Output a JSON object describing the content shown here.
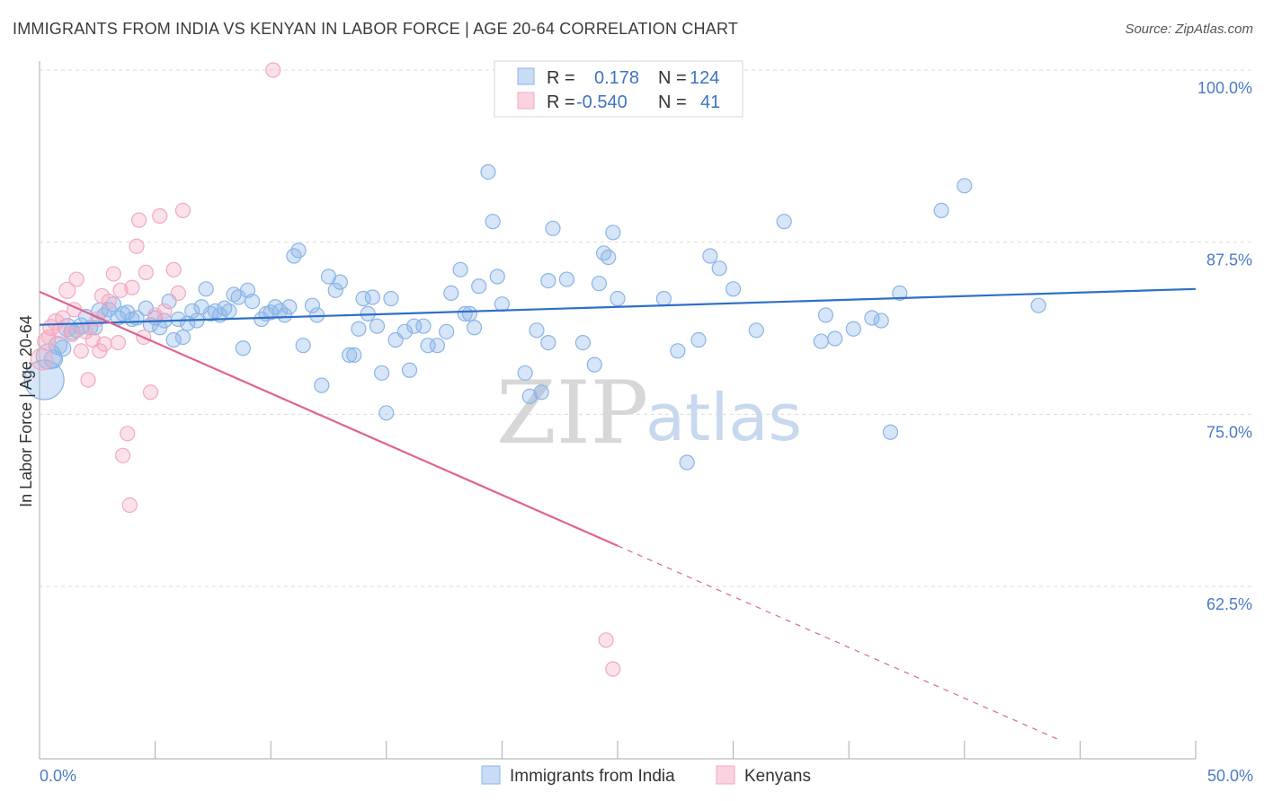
{
  "title": "IMMIGRANTS FROM INDIA VS KENYAN IN LABOR FORCE | AGE 20-64 CORRELATION CHART",
  "source": "Source: ZipAtlas.com",
  "watermark": {
    "zip": "ZIP",
    "atlas": "atlas"
  },
  "legend_top": {
    "rows": [
      {
        "r_label": "R =",
        "r_value": "0.178",
        "n_label": "N =",
        "n_value": "124",
        "color": "#8ab4e8"
      },
      {
        "r_label": "R =",
        "r_value": "-0.540",
        "n_label": "N =",
        "n_value": "41",
        "color": "#f4a8c0"
      }
    ]
  },
  "chart_data": {
    "type": "scatter",
    "title": "IMMIGRANTS FROM INDIA VS KENYAN IN LABOR FORCE | AGE 20-64 CORRELATION CHART",
    "xlabel": "",
    "ylabel": "In Labor Force | Age 20-64",
    "xlim": [
      0,
      50
    ],
    "ylim": [
      50.0,
      102.0
    ],
    "x_tick_labels": [
      "0.0%",
      "50.0%"
    ],
    "y_ticks": [
      {
        "value": 100.0,
        "label": "100.0%"
      },
      {
        "value": 87.5,
        "label": "87.5%"
      },
      {
        "value": 75.0,
        "label": "75.0%"
      },
      {
        "value": 62.5,
        "label": "62.5%"
      }
    ],
    "grid": true,
    "legend_position": "top-center",
    "series": [
      {
        "name": "Immigrants from India",
        "color": "#8ab4e8",
        "line_color": "#2f6fc7",
        "trend": {
          "x": [
            0,
            50
          ],
          "y": [
            81.5,
            84.1
          ],
          "dashed_from": null
        },
        "points": [
          [
            0.2,
            77.5,
            22
          ],
          [
            0.4,
            79.2,
            14
          ],
          [
            0.6,
            79.0,
            10
          ],
          [
            0.8,
            80.0,
            10
          ],
          [
            1.0,
            79.8,
            9
          ],
          [
            1.2,
            81.3,
            10
          ],
          [
            1.4,
            81.0,
            9
          ],
          [
            1.6,
            81.1,
            8
          ],
          [
            1.8,
            81.4,
            9
          ],
          [
            2.0,
            82.1,
            8
          ],
          [
            2.2,
            81.3,
            8
          ],
          [
            2.4,
            81.3,
            8
          ],
          [
            2.6,
            82.5,
            9
          ],
          [
            2.8,
            82.2,
            8
          ],
          [
            3.0,
            82.6,
            8
          ],
          [
            3.2,
            83.0,
            8
          ],
          [
            3.4,
            82.0,
            8
          ],
          [
            3.6,
            82.3,
            8
          ],
          [
            3.8,
            82.4,
            8
          ],
          [
            4.0,
            81.9,
            8
          ],
          [
            4.2,
            82.0,
            8
          ],
          [
            4.6,
            82.7,
            8
          ],
          [
            4.8,
            81.5,
            8
          ],
          [
            5.0,
            82.0,
            8
          ],
          [
            5.2,
            81.3,
            8
          ],
          [
            5.4,
            81.8,
            8
          ],
          [
            5.6,
            83.2,
            8
          ],
          [
            5.8,
            80.4,
            8
          ],
          [
            6.0,
            81.9,
            8
          ],
          [
            6.2,
            80.6,
            8
          ],
          [
            6.4,
            81.6,
            8
          ],
          [
            6.6,
            82.5,
            8
          ],
          [
            6.8,
            81.8,
            8
          ],
          [
            7.0,
            82.8,
            8
          ],
          [
            7.2,
            84.1,
            8
          ],
          [
            7.4,
            82.3,
            8
          ],
          [
            7.6,
            82.5,
            8
          ],
          [
            7.8,
            82.2,
            8
          ],
          [
            8.0,
            82.7,
            8
          ],
          [
            8.2,
            82.5,
            8
          ],
          [
            8.4,
            83.7,
            8
          ],
          [
            8.6,
            83.5,
            8
          ],
          [
            8.8,
            79.8,
            8
          ],
          [
            9.0,
            84.0,
            8
          ],
          [
            9.2,
            83.2,
            8
          ],
          [
            9.6,
            81.9,
            8
          ],
          [
            9.8,
            82.3,
            8
          ],
          [
            10.0,
            82.4,
            8
          ],
          [
            10.2,
            82.8,
            8
          ],
          [
            10.4,
            82.5,
            8
          ],
          [
            10.6,
            82.2,
            8
          ],
          [
            10.8,
            82.8,
            8
          ],
          [
            11.0,
            86.5,
            8
          ],
          [
            11.2,
            86.9,
            8
          ],
          [
            11.4,
            80.0,
            8
          ],
          [
            11.8,
            82.9,
            8
          ],
          [
            12.0,
            82.2,
            8
          ],
          [
            12.2,
            77.1,
            8
          ],
          [
            12.5,
            85.0,
            8
          ],
          [
            12.8,
            84.0,
            8
          ],
          [
            13.0,
            84.6,
            8
          ],
          [
            13.4,
            79.3,
            8
          ],
          [
            13.6,
            79.3,
            8
          ],
          [
            13.8,
            81.2,
            8
          ],
          [
            14.0,
            83.4,
            8
          ],
          [
            14.2,
            82.3,
            8
          ],
          [
            14.4,
            83.5,
            8
          ],
          [
            14.6,
            81.4,
            8
          ],
          [
            14.8,
            78.0,
            8
          ],
          [
            15.0,
            75.1,
            8
          ],
          [
            15.2,
            83.4,
            8
          ],
          [
            15.4,
            80.4,
            8
          ],
          [
            15.8,
            81.0,
            8
          ],
          [
            16.0,
            78.2,
            8
          ],
          [
            16.2,
            81.4,
            8
          ],
          [
            16.6,
            81.4,
            8
          ],
          [
            16.8,
            80.0,
            8
          ],
          [
            17.2,
            80.0,
            8
          ],
          [
            17.6,
            81.0,
            8
          ],
          [
            17.8,
            83.8,
            8
          ],
          [
            18.2,
            85.5,
            8
          ],
          [
            18.4,
            82.3,
            8
          ],
          [
            18.6,
            82.3,
            8
          ],
          [
            18.8,
            81.3,
            8
          ],
          [
            19.0,
            84.3,
            8
          ],
          [
            19.4,
            92.6,
            8
          ],
          [
            19.6,
            89.0,
            8
          ],
          [
            19.8,
            85.0,
            8
          ],
          [
            20.0,
            83.0,
            8
          ],
          [
            21.0,
            78.0,
            8
          ],
          [
            21.2,
            76.3,
            8
          ],
          [
            21.5,
            81.1,
            8
          ],
          [
            21.7,
            76.6,
            8
          ],
          [
            22.0,
            80.2,
            8
          ],
          [
            22.0,
            84.7,
            8
          ],
          [
            22.2,
            88.5,
            8
          ],
          [
            22.8,
            84.8,
            8
          ],
          [
            23.5,
            80.2,
            8
          ],
          [
            24.0,
            78.6,
            8
          ],
          [
            24.2,
            84.5,
            8
          ],
          [
            24.4,
            86.7,
            8
          ],
          [
            24.6,
            86.4,
            8
          ],
          [
            24.8,
            88.2,
            8
          ],
          [
            25.0,
            83.4,
            8
          ],
          [
            27.0,
            83.4,
            8
          ],
          [
            27.6,
            79.6,
            8
          ],
          [
            28.0,
            71.5,
            8
          ],
          [
            28.5,
            80.4,
            8
          ],
          [
            29.0,
            86.5,
            8
          ],
          [
            29.4,
            85.6,
            8
          ],
          [
            30.0,
            84.1,
            8
          ],
          [
            31.0,
            81.1,
            8
          ],
          [
            32.2,
            89.0,
            8
          ],
          [
            33.8,
            80.3,
            8
          ],
          [
            34.0,
            82.2,
            8
          ],
          [
            34.4,
            80.5,
            8
          ],
          [
            35.2,
            81.2,
            8
          ],
          [
            36.0,
            82.0,
            8
          ],
          [
            36.4,
            81.8,
            8
          ],
          [
            36.8,
            73.7,
            8
          ],
          [
            37.2,
            83.8,
            8
          ],
          [
            39.0,
            89.8,
            8
          ],
          [
            40.0,
            91.6,
            8
          ],
          [
            43.2,
            82.9,
            8
          ]
        ]
      },
      {
        "name": "Kenyans",
        "color": "#f4a8c0",
        "line_color": "#e0648f",
        "trend": {
          "x": [
            0,
            50
          ],
          "y": [
            83.9,
            47.0
          ],
          "dashed_from": 25.0
        },
        "points": [
          [
            0.1,
            79.0,
            12
          ],
          [
            0.3,
            80.3,
            10
          ],
          [
            0.5,
            81.3,
            9
          ],
          [
            0.7,
            81.7,
            9
          ],
          [
            0.9,
            81.1,
            9
          ],
          [
            1.0,
            82.0,
            8
          ],
          [
            1.2,
            84.0,
            9
          ],
          [
            1.4,
            80.8,
            8
          ],
          [
            1.6,
            84.8,
            8
          ],
          [
            1.8,
            79.6,
            8
          ],
          [
            2.0,
            81.0,
            8
          ],
          [
            2.1,
            77.5,
            8
          ],
          [
            2.3,
            80.4,
            8
          ],
          [
            2.5,
            81.9,
            8
          ],
          [
            2.6,
            79.6,
            8
          ],
          [
            2.8,
            80.1,
            8
          ],
          [
            3.0,
            83.2,
            8
          ],
          [
            3.2,
            85.2,
            8
          ],
          [
            3.4,
            80.2,
            8
          ],
          [
            3.5,
            84.0,
            8
          ],
          [
            3.6,
            72.0,
            8
          ],
          [
            3.8,
            73.6,
            8
          ],
          [
            3.9,
            68.4,
            8
          ],
          [
            4.0,
            84.2,
            8
          ],
          [
            4.2,
            87.2,
            8
          ],
          [
            4.3,
            89.1,
            8
          ],
          [
            4.5,
            80.6,
            8
          ],
          [
            4.6,
            85.3,
            8
          ],
          [
            4.8,
            76.6,
            8
          ],
          [
            5.0,
            82.2,
            8
          ],
          [
            5.2,
            89.4,
            8
          ],
          [
            5.4,
            82.5,
            8
          ],
          [
            5.8,
            85.5,
            8
          ],
          [
            6.0,
            83.8,
            8
          ],
          [
            6.2,
            89.8,
            8
          ],
          [
            10.1,
            100.0,
            8
          ],
          [
            24.5,
            58.6,
            8
          ],
          [
            24.8,
            56.5,
            8
          ],
          [
            1.5,
            82.6,
            8
          ],
          [
            2.7,
            83.6,
            8
          ],
          [
            0.4,
            80.6,
            8
          ]
        ]
      }
    ]
  },
  "bottom_legend": [
    {
      "label": "Immigrants from India",
      "color": "#8ab4e8"
    },
    {
      "label": "Kenyans",
      "color": "#f4a8c0"
    }
  ]
}
